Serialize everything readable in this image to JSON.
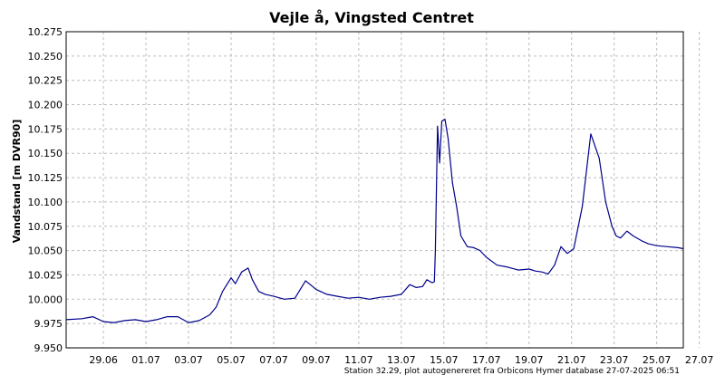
{
  "chart_data": {
    "type": "line",
    "title": "Vejle å, Vingsted Centret",
    "ylabel": "Vandstand [m DVR90]",
    "xlabel": "",
    "ylim": [
      9.95,
      10.275
    ],
    "yticks": [
      9.95,
      9.975,
      10.0,
      10.025,
      10.05,
      10.075,
      10.1,
      10.125,
      10.15,
      10.175,
      10.2,
      10.225,
      10.25,
      10.275
    ],
    "ytick_labels": [
      "9.950",
      "9.975",
      "10.000",
      "10.025",
      "10.050",
      "10.075",
      "10.100",
      "10.125",
      "10.150",
      "10.175",
      "10.200",
      "10.225",
      "10.250",
      "10.275"
    ],
    "xlim": [
      -0.75,
      28.25
    ],
    "x_unit": "day offset from 28.06.2025",
    "xticks": [
      1,
      3,
      5,
      7,
      9,
      11,
      13,
      15,
      17,
      19,
      21,
      23,
      25,
      27,
      29
    ],
    "xtick_labels": [
      "29.06",
      "01.07",
      "03.07",
      "05.07",
      "07.07",
      "09.07",
      "11.07",
      "13.07",
      "15.07",
      "17.07",
      "19.07",
      "21.07",
      "23.07",
      "25.07",
      "27.07"
    ],
    "grid": true,
    "series": [
      {
        "name": "",
        "color": "#00008b",
        "x": [
          -0.75,
          0,
          0.5,
          1,
          1.5,
          2,
          2.5,
          3,
          3.5,
          4,
          4.5,
          5,
          5.5,
          6,
          6.3,
          6.6,
          7,
          7.2,
          7.5,
          7.8,
          8,
          8.3,
          8.6,
          9,
          9.5,
          10,
          10.5,
          11,
          11.5,
          12,
          12.5,
          13,
          13.5,
          14,
          14.5,
          15,
          15.4,
          15.7,
          16,
          16.2,
          16.45,
          16.55,
          16.6,
          16.7,
          16.8,
          16.9,
          17.05,
          17.2,
          17.4,
          17.6,
          17.8,
          18.1,
          18.4,
          18.7,
          19,
          19.5,
          20,
          20.5,
          21,
          21.3,
          21.6,
          21.9,
          22.2,
          22.5,
          22.8,
          23.1,
          23.5,
          23.9,
          24.3,
          24.6,
          24.9,
          25.1,
          25.3,
          25.6,
          25.9,
          26.3,
          26.6,
          27,
          27.5,
          28,
          28.25
        ],
        "y": [
          9.979,
          9.98,
          9.982,
          9.977,
          9.976,
          9.978,
          9.979,
          9.977,
          9.979,
          9.982,
          9.982,
          9.976,
          9.978,
          9.984,
          9.992,
          10.008,
          10.022,
          10.016,
          10.028,
          10.032,
          10.02,
          10.008,
          10.005,
          10.003,
          10.0,
          10.001,
          10.019,
          10.01,
          10.005,
          10.003,
          10.001,
          10.002,
          10.0,
          10.002,
          10.003,
          10.005,
          10.015,
          10.012,
          10.013,
          10.02,
          10.017,
          10.018,
          10.05,
          10.178,
          10.14,
          10.183,
          10.185,
          10.165,
          10.12,
          10.095,
          10.065,
          10.054,
          10.053,
          10.05,
          10.043,
          10.035,
          10.033,
          10.03,
          10.031,
          10.029,
          10.028,
          10.026,
          10.035,
          10.054,
          10.047,
          10.052,
          10.095,
          10.17,
          10.145,
          10.1,
          10.075,
          10.065,
          10.063,
          10.07,
          10.065,
          10.06,
          10.057,
          10.055,
          10.054,
          10.053,
          10.052
        ]
      }
    ]
  },
  "footer": "Station 32.29, plot autogenereret fra Orbicons Hymer database 27-07-2025 06:51"
}
